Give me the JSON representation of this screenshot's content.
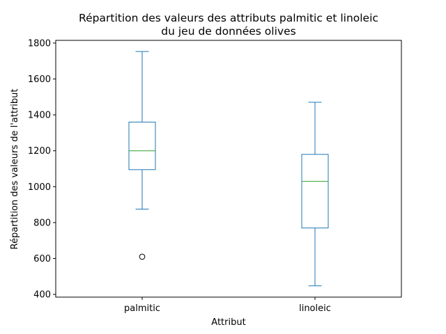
{
  "chart_data": {
    "type": "box",
    "title_lines": [
      "Répartition des valeurs des attributs palmitic et linoleic",
      "du jeu de données olives"
    ],
    "xlabel": "Attribut",
    "ylabel": "Répartition des valeurs de l'attribut",
    "ylim": [
      385,
      1815
    ],
    "yticks": [
      400,
      600,
      800,
      1000,
      1200,
      1400,
      1600,
      1800
    ],
    "categories": [
      "palmitic",
      "linoleic"
    ],
    "boxes": [
      {
        "category": "palmitic",
        "whisker_low": 875,
        "q1": 1095,
        "median": 1200,
        "q3": 1360,
        "whisker_high": 1753,
        "outliers": [
          610
        ]
      },
      {
        "category": "linoleic",
        "whisker_low": 448,
        "q1": 770,
        "median": 1030,
        "q3": 1180,
        "whisker_high": 1470,
        "outliers": []
      }
    ],
    "colors": {
      "box": "#1f77b4",
      "median": "#2ca02c",
      "outlier": "#000000",
      "axis": "#000000"
    },
    "grid": false,
    "legend": "none"
  }
}
